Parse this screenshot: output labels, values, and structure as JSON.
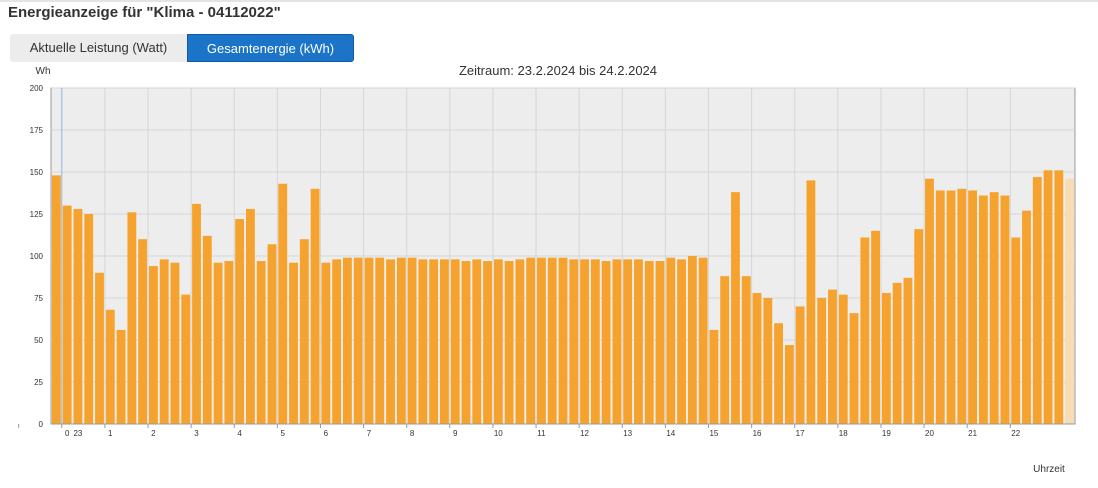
{
  "page": {
    "title": "Energieanzeige für \"Klima - 04112022\""
  },
  "tabs": [
    {
      "label": "Aktuelle Leistung (Watt)",
      "active": false
    },
    {
      "label": "Gesamtenergie (kWh)",
      "active": true
    }
  ],
  "colors": {
    "accent": "#1b74c8",
    "bar": "#f5a32e",
    "bar_pending": "#f7dcb4",
    "plot_background": "#ededed"
  },
  "chart_data": {
    "type": "bar",
    "title": "Zeitraum: 23.2.2024 bis 24.2.2024",
    "ylabel": "Wh",
    "xlabel": "Uhrzeit",
    "ylim": [
      0,
      200
    ],
    "yticks": [
      0,
      25,
      50,
      75,
      100,
      125,
      150,
      175,
      200
    ],
    "grid": true,
    "x_tick_labels": [
      "23",
      "0",
      "1",
      "2",
      "3",
      "4",
      "5",
      "6",
      "7",
      "8",
      "9",
      "10",
      "11",
      "12",
      "13",
      "14",
      "15",
      "16",
      "17",
      "18",
      "19",
      "20",
      "21",
      "22"
    ],
    "interval_minutes": 15,
    "start_time": "22:45",
    "values": [
      148,
      130,
      128,
      125,
      90,
      68,
      56,
      126,
      110,
      94,
      98,
      96,
      77,
      131,
      112,
      96,
      97,
      122,
      128,
      97,
      107,
      143,
      96,
      110,
      140,
      96,
      98,
      99,
      99,
      99,
      99,
      98,
      99,
      99,
      98,
      98,
      98,
      98,
      97,
      98,
      97,
      98,
      97,
      98,
      99,
      99,
      99,
      99,
      98,
      98,
      98,
      97,
      98,
      98,
      98,
      97,
      97,
      99,
      98,
      100,
      99,
      56,
      88,
      138,
      88,
      78,
      75,
      60,
      47,
      70,
      145,
      75,
      80,
      77,
      66,
      111,
      115,
      78,
      84,
      87,
      116,
      146,
      139,
      139,
      140,
      139,
      136,
      138,
      136,
      111,
      127,
      147,
      151,
      151,
      146
    ],
    "pending_last_value": true,
    "day_boundary_label": "0"
  }
}
